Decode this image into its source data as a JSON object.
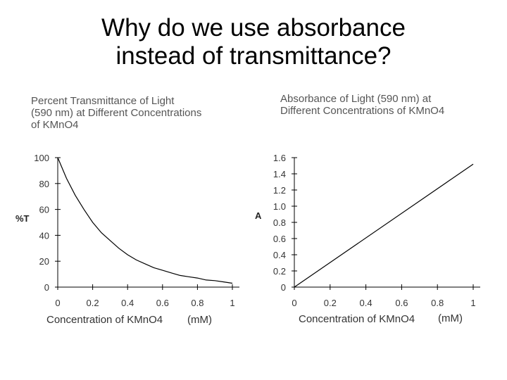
{
  "slide": {
    "title_line1": "Why do we use absorbance",
    "title_line2": "instead of transmittance?"
  },
  "chart_data": [
    {
      "type": "line",
      "title": "Percent Transmittance of Light (590 nm) at Different Concentrations of KMnO4",
      "title_lines": [
        "Percent Transmittance of Light",
        "(590 nm) at Different Concentrations",
        "of KMnO4"
      ],
      "xlabel": "Concentration of KMnO4",
      "xunit": "(mM)",
      "ylabel": "%T",
      "xlim": [
        0,
        1
      ],
      "ylim": [
        0,
        100
      ],
      "x_ticks": [
        "0",
        "0.2",
        "0.4",
        "0.6",
        "0.8",
        "1"
      ],
      "y_ticks": [
        "0",
        "20",
        "40",
        "60",
        "80",
        "100"
      ],
      "series": [
        {
          "x": [
            0,
            0.05,
            0.1,
            0.15,
            0.2,
            0.25,
            0.3,
            0.35,
            0.4,
            0.45,
            0.5,
            0.55,
            0.6,
            0.65,
            0.7,
            0.75,
            0.8,
            0.85,
            0.9,
            0.95,
            1.0
          ],
          "y": [
            100,
            84,
            71,
            60,
            50,
            42,
            36,
            30,
            25,
            21,
            18,
            15,
            13,
            11,
            9,
            8,
            7,
            5.5,
            5,
            4,
            3
          ]
        }
      ]
    },
    {
      "type": "line",
      "title": "Absorbance of Light (590 nm) at Different Concentrations of KMnO4",
      "title_lines": [
        "Absorbance of Light (590 nm) at",
        "Different Concentrations of KMnO4"
      ],
      "xlabel": "Concentration of KMnO4",
      "xunit": "(mM)",
      "ylabel": "A",
      "xlim": [
        0,
        1
      ],
      "ylim": [
        0,
        1.6
      ],
      "x_ticks": [
        "0",
        "0.2",
        "0.4",
        "0.6",
        "0.8",
        "1"
      ],
      "y_ticks": [
        "0",
        "0.2",
        "0.4",
        "0.6",
        "0.8",
        "1.0",
        "1.2",
        "1.4",
        "1.6"
      ],
      "series": [
        {
          "x": [
            0,
            1.0
          ],
          "y": [
            0,
            1.52
          ]
        }
      ]
    }
  ]
}
